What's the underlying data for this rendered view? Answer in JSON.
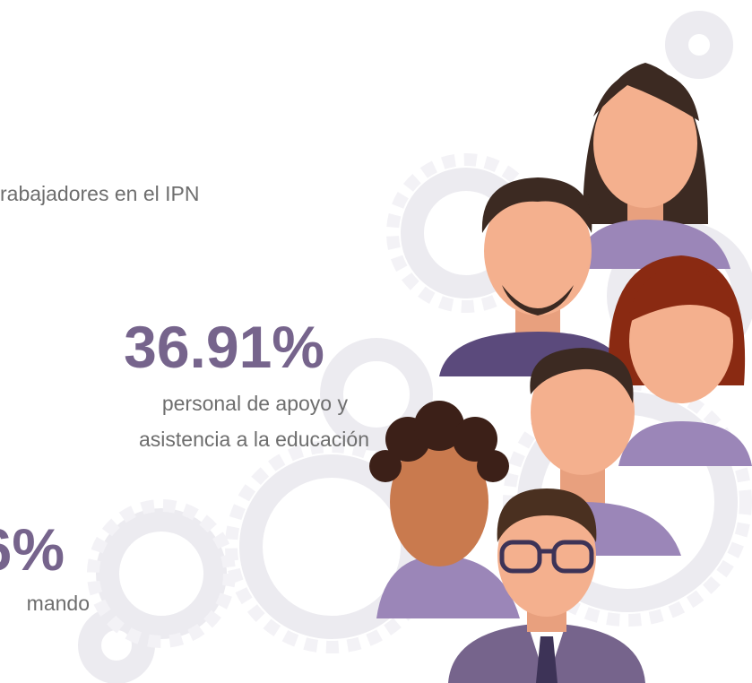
{
  "stats": [
    {
      "label": "rabajadores en el IPN"
    },
    {
      "value": "36.91%",
      "label_lines": [
        "personal de apoyo y",
        "asistencia a la educación"
      ]
    },
    {
      "value": "6%",
      "label_lines": [
        "mando"
      ]
    }
  ]
}
